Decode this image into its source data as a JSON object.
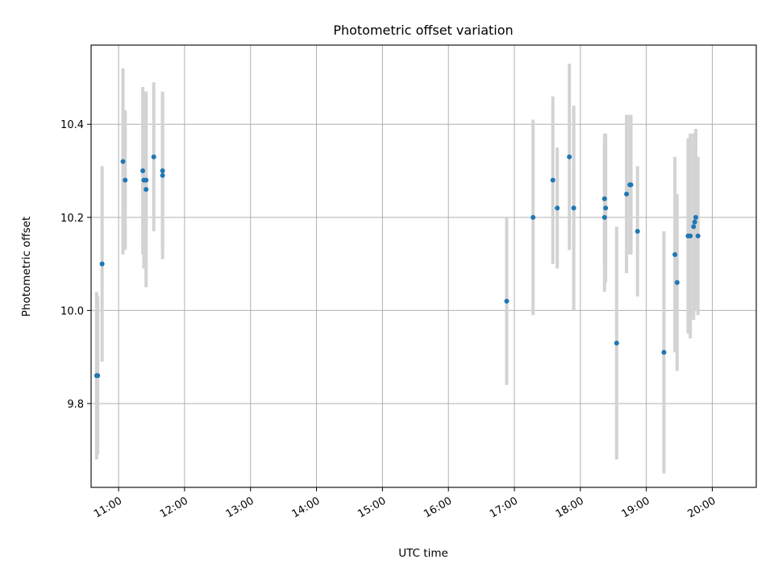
{
  "chart_data": {
    "type": "scatter",
    "title": "Photometric offset variation",
    "xlabel": "UTC time",
    "ylabel": "Photometric offset",
    "x_ticks": [
      "11:00",
      "12:00",
      "13:00",
      "14:00",
      "15:00",
      "16:00",
      "17:00",
      "18:00",
      "19:00",
      "20:00"
    ],
    "y_ticks": [
      "9.8",
      "10.0",
      "10.2",
      "10.4"
    ],
    "xlim": [
      "10:35",
      "20:40"
    ],
    "ylim": [
      9.62,
      10.57
    ],
    "grid": true,
    "errorbar_color": "#d3d3d3",
    "point_color": "#1f77b4",
    "points": [
      {
        "t": "10:40",
        "y": 9.86,
        "err": 0.18
      },
      {
        "t": "10:41",
        "y": 9.86,
        "err": 0.17
      },
      {
        "t": "10:45",
        "y": 10.1,
        "err": 0.21
      },
      {
        "t": "11:04",
        "y": 10.32,
        "err": 0.2
      },
      {
        "t": "11:06",
        "y": 10.28,
        "err": 0.15
      },
      {
        "t": "11:22",
        "y": 10.3,
        "err": 0.18
      },
      {
        "t": "11:23",
        "y": 10.28,
        "err": 0.19
      },
      {
        "t": "11:25",
        "y": 10.28,
        "err": 0.19
      },
      {
        "t": "11:25",
        "y": 10.26,
        "err": 0.21
      },
      {
        "t": "11:32",
        "y": 10.33,
        "err": 0.16
      },
      {
        "t": "11:40",
        "y": 10.29,
        "err": 0.18
      },
      {
        "t": "11:40",
        "y": 10.3,
        "err": 0.17
      },
      {
        "t": "16:53",
        "y": 10.02,
        "err": 0.18
      },
      {
        "t": "17:17",
        "y": 10.2,
        "err": 0.21
      },
      {
        "t": "17:35",
        "y": 10.28,
        "err": 0.18
      },
      {
        "t": "17:39",
        "y": 10.22,
        "err": 0.13
      },
      {
        "t": "17:50",
        "y": 10.33,
        "err": 0.2
      },
      {
        "t": "17:54",
        "y": 10.22,
        "err": 0.22
      },
      {
        "t": "18:22",
        "y": 10.2,
        "err": 0.16
      },
      {
        "t": "18:22",
        "y": 10.24,
        "err": 0.14
      },
      {
        "t": "18:23",
        "y": 10.22,
        "err": 0.16
      },
      {
        "t": "18:33",
        "y": 9.93,
        "err": 0.25
      },
      {
        "t": "18:42",
        "y": 10.25,
        "err": 0.17
      },
      {
        "t": "18:45",
        "y": 10.27,
        "err": 0.15
      },
      {
        "t": "18:46",
        "y": 10.27,
        "err": 0.15
      },
      {
        "t": "18:52",
        "y": 10.17,
        "err": 0.14
      },
      {
        "t": "19:16",
        "y": 9.91,
        "err": 0.26
      },
      {
        "t": "19:26",
        "y": 10.12,
        "err": 0.21
      },
      {
        "t": "19:28",
        "y": 10.06,
        "err": 0.19
      },
      {
        "t": "19:38",
        "y": 10.16,
        "err": 0.21
      },
      {
        "t": "19:40",
        "y": 10.16,
        "err": 0.22
      },
      {
        "t": "19:43",
        "y": 10.18,
        "err": 0.2
      },
      {
        "t": "19:44",
        "y": 10.19,
        "err": 0.19
      },
      {
        "t": "19:45",
        "y": 10.2,
        "err": 0.19
      },
      {
        "t": "19:47",
        "y": 10.16,
        "err": 0.17
      }
    ]
  }
}
